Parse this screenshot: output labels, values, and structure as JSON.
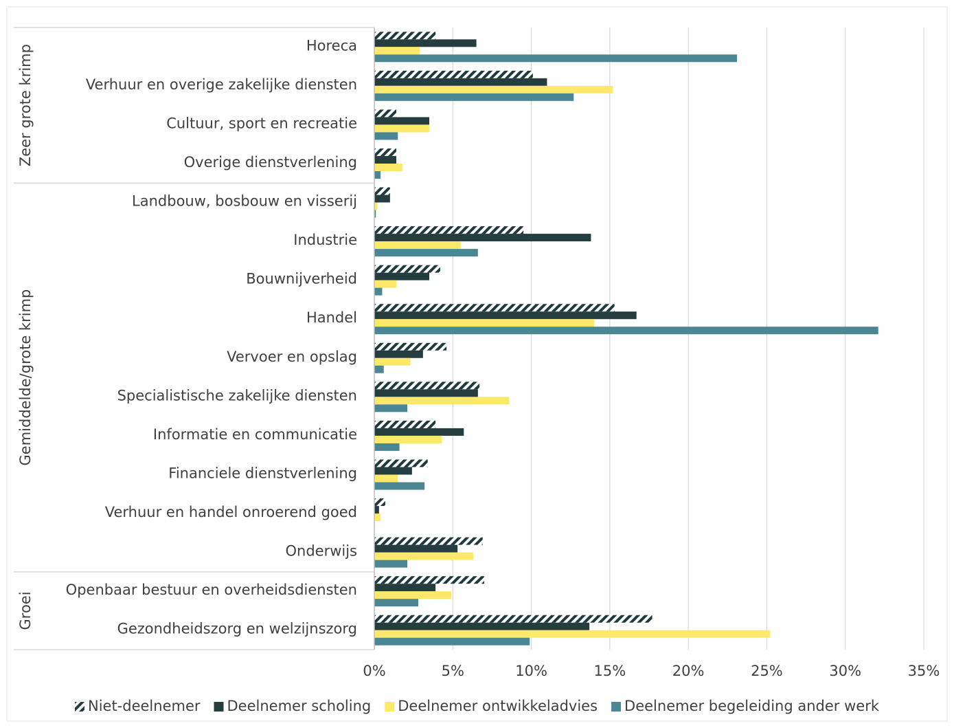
{
  "chart_data": {
    "type": "bar",
    "orientation": "horizontal",
    "categories": [
      "Horeca",
      "Verhuur en overige zakelijke diensten",
      "Cultuur, sport en recreatie",
      "Overige dienstverlening",
      "Landbouw, bosbouw en visserij",
      "Industrie",
      "Bouwnijverheid",
      "Handel",
      "Vervoer en opslag",
      "Specialistische zakelijke diensten",
      "Informatie en communicatie",
      "Financiele dienstverlening",
      "Verhuur en handel onroerend goed",
      "Onderwijs",
      "Openbaar bestuur en overheidsdiensten",
      "Gezondheidszorg en welzijnszorg"
    ],
    "groups": [
      {
        "label": "Zeer grote krimp",
        "size": 4
      },
      {
        "label": "Gemiddelde/grote krimp",
        "size": 10
      },
      {
        "label": "Groei",
        "size": 2
      }
    ],
    "series": [
      {
        "name": "Niet-deelnemer",
        "color": "#1f3a3d",
        "hatch": true,
        "values": [
          3.9,
          10.1,
          1.4,
          1.4,
          1.0,
          9.5,
          4.2,
          15.3,
          4.6,
          6.7,
          3.9,
          3.4,
          0.7,
          6.9,
          7.0,
          17.7
        ]
      },
      {
        "name": "Deelnemer scholing",
        "color": "#263d3f",
        "values": [
          6.5,
          11.0,
          3.5,
          1.4,
          1.0,
          13.8,
          3.5,
          16.7,
          3.1,
          6.6,
          5.7,
          2.4,
          0.3,
          5.3,
          3.9,
          13.7
        ]
      },
      {
        "name": "Deelnemer ontwikkeladvies",
        "color": "#fce96a",
        "values": [
          2.9,
          15.2,
          3.5,
          1.8,
          0.2,
          5.5,
          1.4,
          14.0,
          2.3,
          8.6,
          4.3,
          1.5,
          0.4,
          6.3,
          4.9,
          25.2
        ]
      },
      {
        "name": "Deelnemer begeleiding ander werk",
        "color": "#4a8793",
        "values": [
          23.1,
          12.7,
          1.5,
          0.4,
          0.1,
          6.6,
          0.5,
          32.1,
          0.6,
          2.1,
          1.6,
          3.2,
          0,
          2.1,
          2.8,
          9.9
        ]
      }
    ],
    "xlim": [
      0,
      35
    ],
    "xticks": [
      {
        "value": 0,
        "label": "0%"
      },
      {
        "value": 5,
        "label": "5%"
      },
      {
        "value": 10,
        "label": "10%"
      },
      {
        "value": 15,
        "label": "15%"
      },
      {
        "value": 20,
        "label": "20%"
      },
      {
        "value": 25,
        "label": "25%"
      },
      {
        "value": 30,
        "label": "30%"
      },
      {
        "value": 35,
        "label": "35%"
      }
    ],
    "grid": true,
    "legend": "bottom"
  }
}
